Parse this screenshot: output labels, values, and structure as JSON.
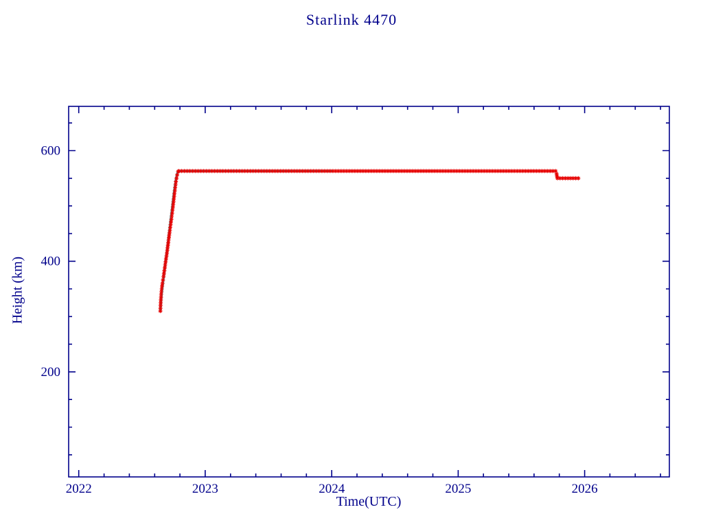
{
  "chart_data": {
    "type": "scatter",
    "title": "Starlink 4470",
    "xlabel": "Time(UTC)",
    "ylabel": "Height (km)",
    "xlim": [
      2021.92,
      2026.67
    ],
    "ylim": [
      10,
      680
    ],
    "xticks": [
      2022,
      2023,
      2024,
      2025,
      2026
    ],
    "yticks": [
      200,
      400,
      600
    ],
    "x_minor_step": 0.2,
    "y_minor_step": 50,
    "grid": false,
    "legend": "none",
    "axis_color": "#00008B",
    "background_color": "#ffffff",
    "series": [
      {
        "name": "smoothed-track-line",
        "type": "line",
        "color": "#00E0E0",
        "width": 3,
        "points": [
          [
            2022.645,
            310
          ],
          [
            2022.65,
            326
          ],
          [
            2022.658,
            344
          ],
          [
            2022.668,
            364
          ],
          [
            2022.678,
            384
          ],
          [
            2022.69,
            406
          ],
          [
            2022.702,
            428
          ],
          [
            2022.714,
            452
          ],
          [
            2022.726,
            476
          ],
          [
            2022.74,
            502
          ],
          [
            2022.754,
            528
          ],
          [
            2022.768,
            548
          ],
          [
            2022.78,
            560
          ],
          [
            2022.79,
            563
          ],
          [
            2024.0,
            563
          ]
        ]
      },
      {
        "name": "observed-height-markers",
        "type": "markers",
        "marker": "asterisk",
        "color": "#E60000",
        "size": 6,
        "points": [
          [
            2022.645,
            310
          ],
          [
            2022.647,
            320
          ],
          [
            2022.649,
            330
          ],
          [
            2022.652,
            340
          ],
          [
            2022.656,
            350
          ],
          [
            2022.662,
            360
          ],
          [
            2022.67,
            372
          ],
          [
            2022.68,
            388
          ],
          [
            2022.69,
            404
          ],
          [
            2022.7,
            420
          ],
          [
            2022.71,
            438
          ],
          [
            2022.72,
            456
          ],
          [
            2022.732,
            476
          ],
          [
            2022.744,
            498
          ],
          [
            2022.756,
            522
          ],
          [
            2022.768,
            544
          ],
          [
            2022.778,
            556
          ],
          [
            2022.786,
            562
          ],
          [
            2022.792,
            563
          ],
          [
            2025.77,
            563
          ],
          [
            2025.778,
            558
          ],
          [
            2025.785,
            550
          ],
          [
            2025.95,
            550
          ]
        ]
      }
    ]
  }
}
